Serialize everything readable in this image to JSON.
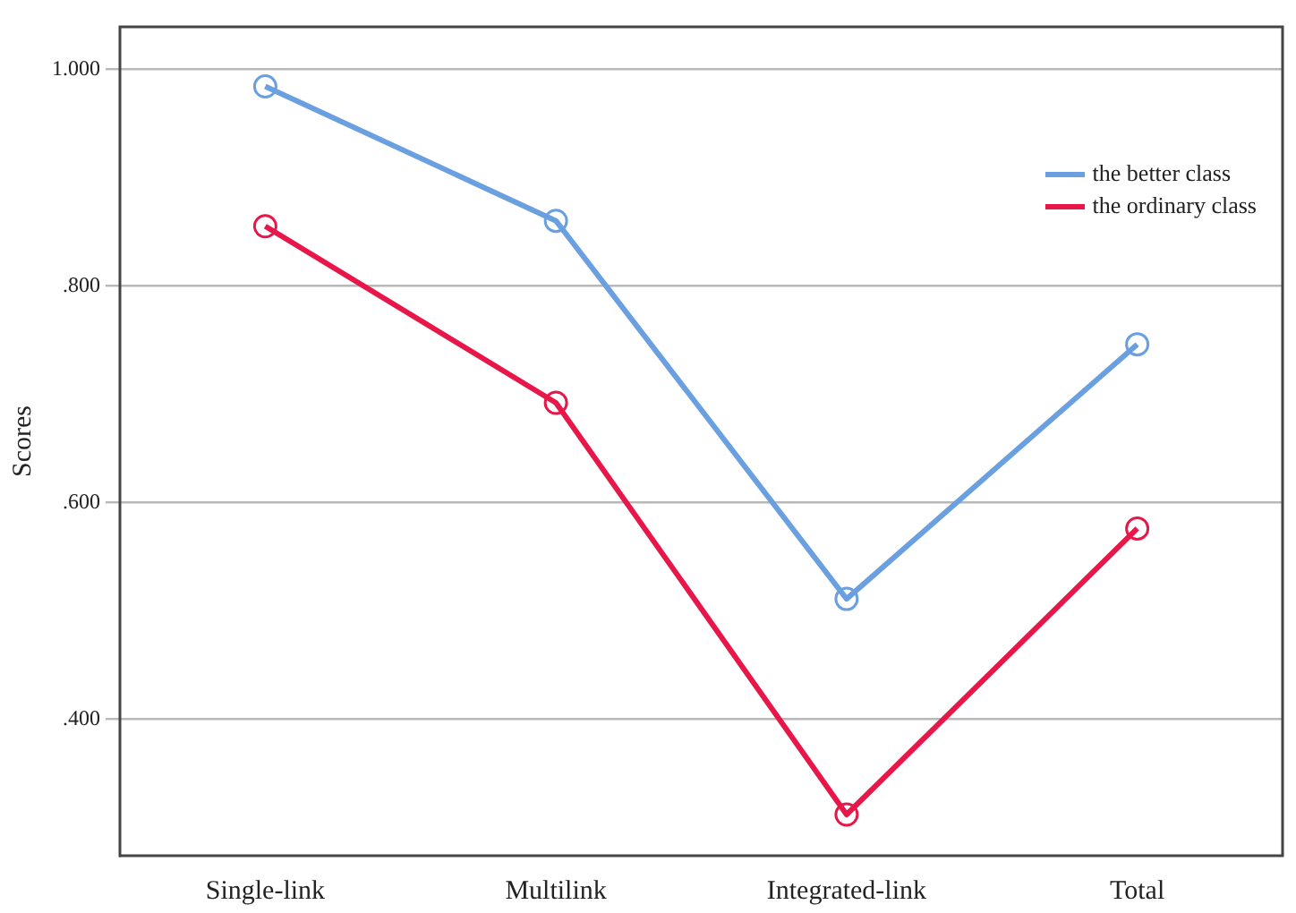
{
  "chart_data": {
    "type": "line",
    "ylabel": "Scores",
    "categories": [
      "Single-link",
      "Multilink",
      "Integrated-link",
      "Total"
    ],
    "series": [
      {
        "name": "the better class",
        "color": "#6a9fe0",
        "values": [
          0.984,
          0.86,
          0.511,
          0.746
        ]
      },
      {
        "name": "the ordinary class",
        "color": "#e8174a",
        "values": [
          0.855,
          0.692,
          0.312,
          0.576
        ]
      }
    ],
    "ylim": [
      0.274,
      1.039
    ],
    "yticks": [
      {
        "value": 0.4,
        "label": ".400"
      },
      {
        "value": 0.6,
        "label": ".600"
      },
      {
        "value": 0.8,
        "label": ".800"
      },
      {
        "value": 1.0,
        "label": "1.000"
      }
    ],
    "grid": "y",
    "legend": "top right",
    "marker": "circle",
    "line_style": "solid"
  }
}
